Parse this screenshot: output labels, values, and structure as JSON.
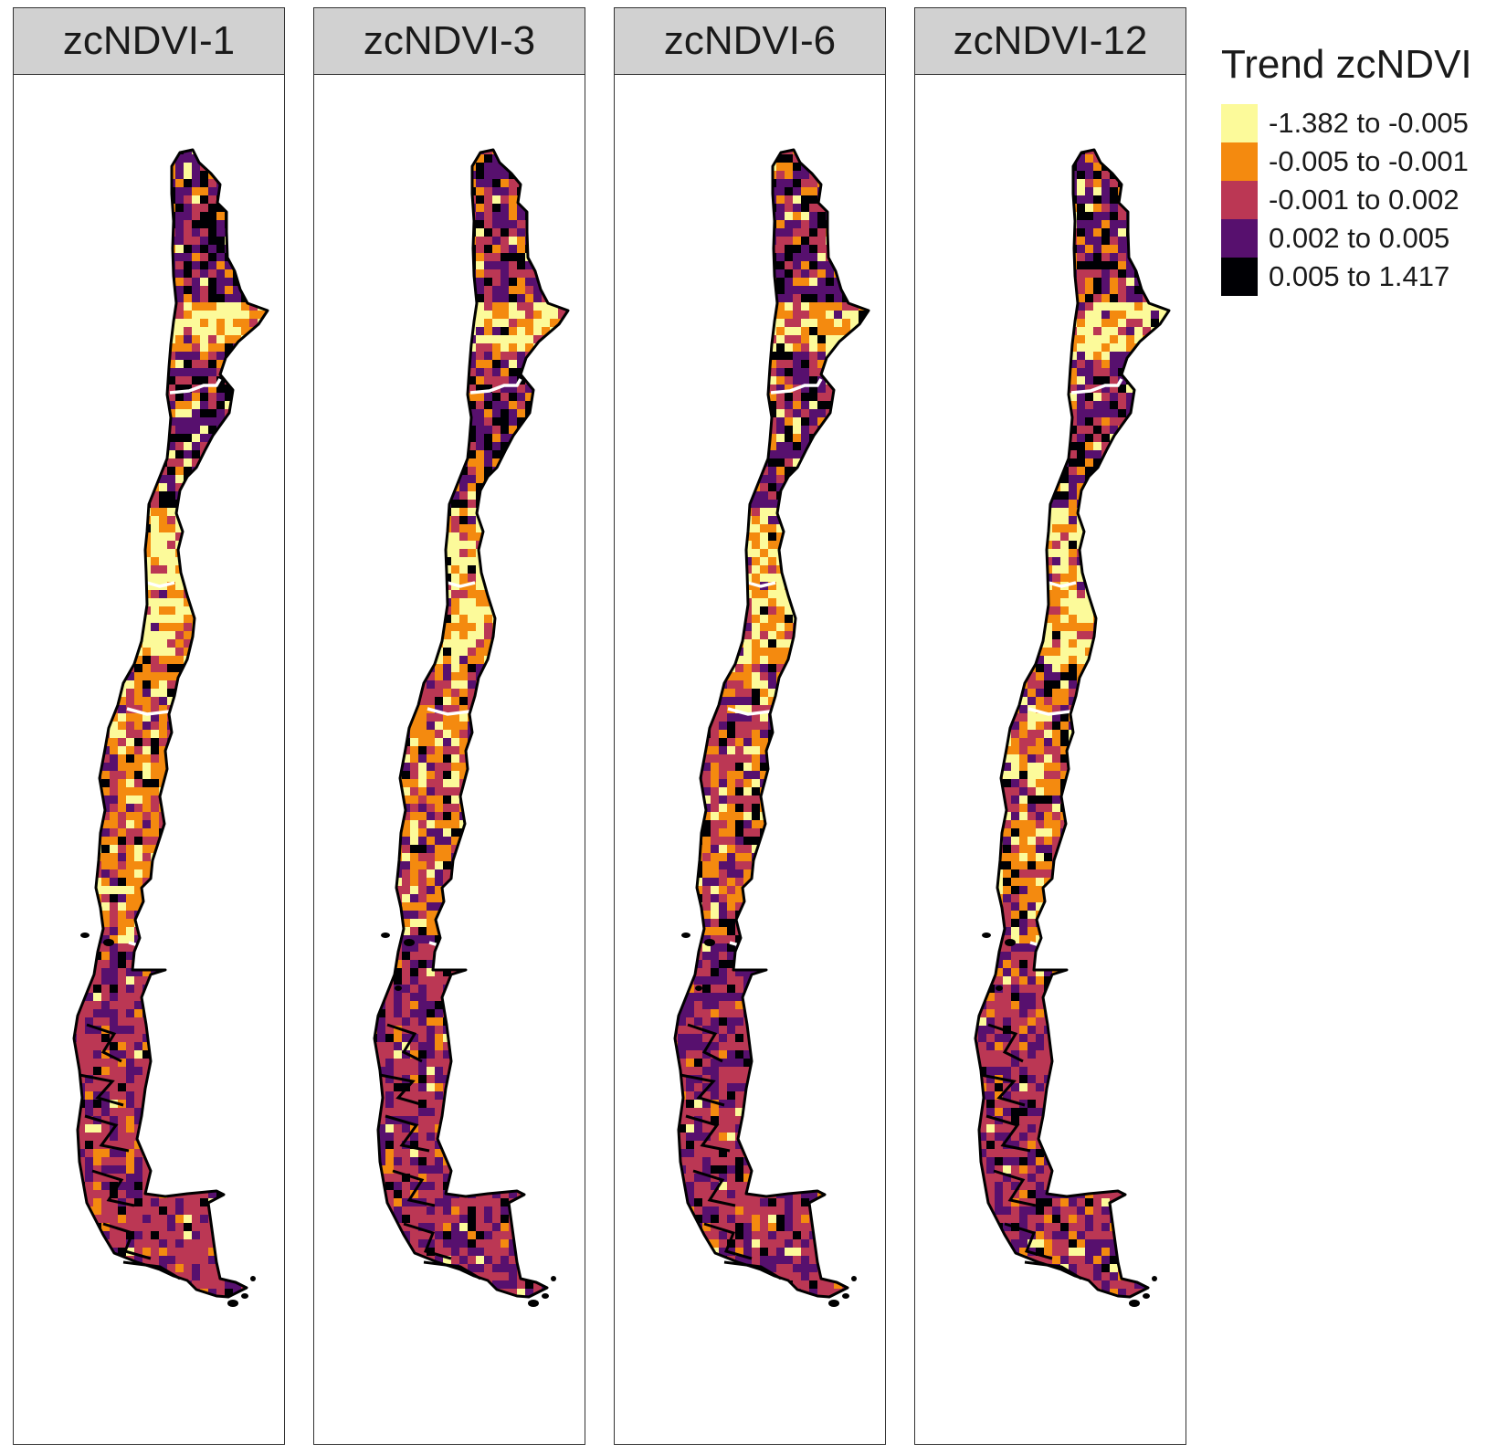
{
  "panels": [
    {
      "title": "zcNDVI-1"
    },
    {
      "title": "zcNDVI-3"
    },
    {
      "title": "zcNDVI-6"
    },
    {
      "title": "zcNDVI-12"
    }
  ],
  "legend": {
    "title": "Trend zcNDVI",
    "classes": [
      {
        "label": "-1.382 to -0.005",
        "color": "#fcfa9a"
      },
      {
        "label": "-0.005 to -0.001",
        "color": "#f48a0f"
      },
      {
        "label": "-0.001 to 0.002",
        "color": "#bb3754"
      },
      {
        "label": "0.002 to 0.005",
        "color": "#57106e"
      },
      {
        "label": "0.005 to 1.417",
        "color": "#000004"
      }
    ]
  }
}
